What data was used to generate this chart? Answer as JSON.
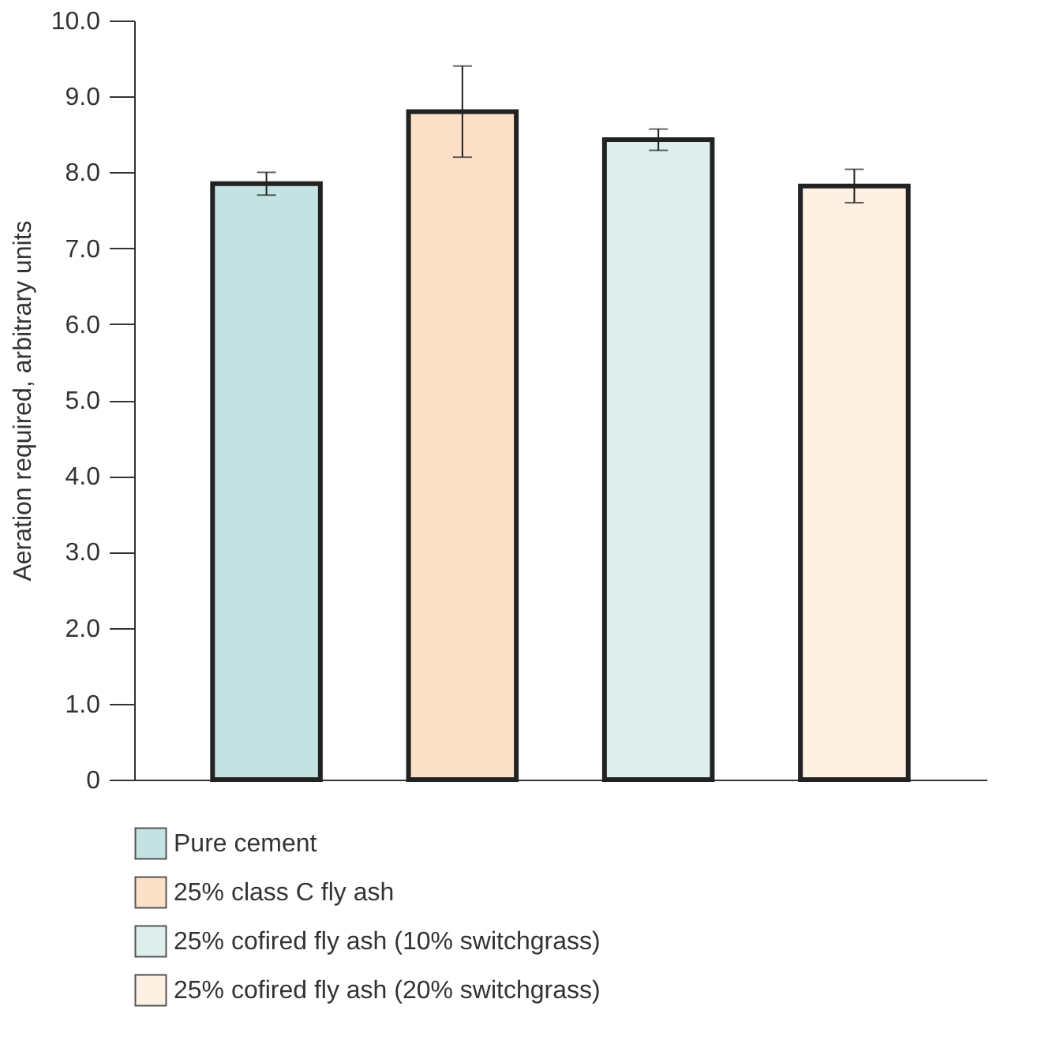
{
  "chart_data": {
    "type": "bar",
    "ylabel": "Aeration required, arbitrary units",
    "categories": [
      null
    ],
    "series": [
      {
        "name": "Pure cement",
        "color": "#c3e2e1",
        "values": [
          7.85
        ],
        "errors": [
          0.15
        ]
      },
      {
        "name": "25% class C fly ash",
        "color": "#fde0c8",
        "values": [
          8.8
        ],
        "errors": [
          0.6
        ]
      },
      {
        "name": "25% cofired fly ash (10% switchgrass)",
        "color": "#deeeed",
        "values": [
          8.43
        ],
        "errors": [
          0.14
        ]
      },
      {
        "name": "25% cofired fly ash (20% switchgrass)",
        "color": "#fef0e2",
        "values": [
          7.82
        ],
        "errors": [
          0.22
        ]
      }
    ],
    "ylim": [
      0,
      10
    ],
    "yticks": [
      {
        "value": 0,
        "label": "0"
      },
      {
        "value": 1,
        "label": "1.0"
      },
      {
        "value": 2,
        "label": "2.0"
      },
      {
        "value": 3,
        "label": "3.0"
      },
      {
        "value": 4,
        "label": "4.0"
      },
      {
        "value": 5,
        "label": "5.0"
      },
      {
        "value": 6,
        "label": "6.0"
      },
      {
        "value": 7,
        "label": "7.0"
      },
      {
        "value": 8,
        "label": "8.0"
      },
      {
        "value": 9,
        "label": "9.0"
      },
      {
        "value": 10,
        "label": "10.0"
      }
    ],
    "tick_labels": "y",
    "legend": "bottom"
  }
}
